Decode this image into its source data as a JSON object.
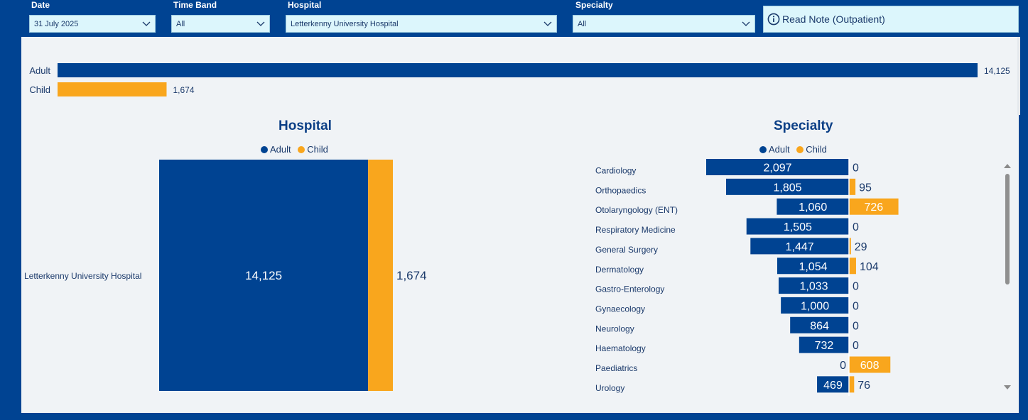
{
  "filters": {
    "date": {
      "label": "Date",
      "value": "31 July 2025"
    },
    "time_band": {
      "label": "Time Band",
      "value": "All"
    },
    "hospital": {
      "label": "Hospital",
      "value": "Letterkenny University Hospital"
    },
    "specialty": {
      "label": "Specialty",
      "value": "All"
    }
  },
  "note_button": {
    "label": "Read Note (Outpatient)",
    "icon": "info-icon"
  },
  "colors": {
    "adult": "#004392",
    "child": "#f9a61d",
    "background": "#004392",
    "panel": "#f0f3f6"
  },
  "legend": {
    "adult": "Adult",
    "child": "Child"
  },
  "chart_data": [
    {
      "type": "bar",
      "orientation": "horizontal",
      "categories": [
        "Adult",
        "Child"
      ],
      "values": [
        14125,
        1674
      ],
      "value_labels": [
        "14,125",
        "1,674"
      ]
    },
    {
      "type": "bar",
      "stacked": true,
      "title": "Hospital",
      "legend": [
        "Adult",
        "Child"
      ],
      "categories": [
        "Letterkenny University Hospital"
      ],
      "series": [
        {
          "name": "Adult",
          "values": [
            14125
          ],
          "labels": [
            "14,125"
          ]
        },
        {
          "name": "Child",
          "values": [
            1674
          ],
          "labels": [
            "1,674"
          ]
        }
      ]
    },
    {
      "type": "bar",
      "orientation": "diverging",
      "title": "Specialty",
      "legend": [
        "Adult",
        "Child"
      ],
      "categories": [
        "Cardiology",
        "Orthopaedics",
        "Otolaryngology (ENT)",
        "Respiratory Medicine",
        "General Surgery",
        "Dermatology",
        "Gastro-Enterology",
        "Gynaecology",
        "Neurology",
        "Haematology",
        "Paediatrics",
        "Urology"
      ],
      "series": [
        {
          "name": "Adult",
          "values": [
            2097,
            1805,
            1060,
            1505,
            1447,
            1054,
            1033,
            1000,
            864,
            732,
            0,
            469
          ],
          "labels": [
            "2,097",
            "1,805",
            "1,060",
            "1,505",
            "1,447",
            "1,054",
            "1,033",
            "1,000",
            "864",
            "732",
            "0",
            "469"
          ]
        },
        {
          "name": "Child",
          "values": [
            0,
            95,
            726,
            0,
            29,
            104,
            0,
            0,
            0,
            0,
            608,
            76
          ],
          "labels": [
            "0",
            "95",
            "726",
            "0",
            "29",
            "104",
            "0",
            "0",
            "0",
            "0",
            "608",
            "76"
          ]
        }
      ]
    }
  ]
}
